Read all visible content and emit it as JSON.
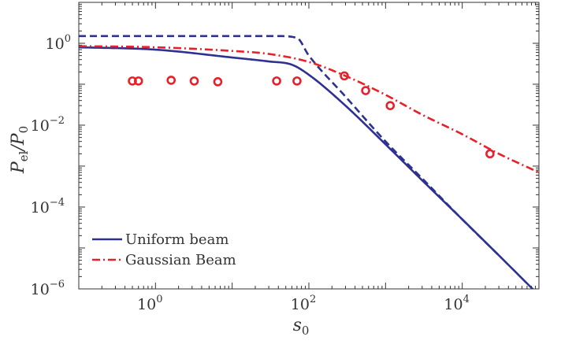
{
  "chart_data": {
    "type": "line",
    "xlabel": {
      "base": "s",
      "sub": "0"
    },
    "ylabel": {
      "num_base": "P",
      "num_sub": "el",
      "slash": "/",
      "den_base": "P",
      "den_sub": "0"
    },
    "xscale": "log",
    "yscale": "log",
    "xlim": [
      0.1,
      100000
    ],
    "ylim": [
      1e-06,
      10
    ],
    "x_tick_labels": [
      {
        "value": 1,
        "base": "10",
        "exp": "0"
      },
      {
        "value": 100,
        "base": "10",
        "exp": "2"
      },
      {
        "value": 10000,
        "base": "10",
        "exp": "4"
      }
    ],
    "y_tick_labels": [
      {
        "value": 1,
        "base": "10",
        "exp": "0"
      },
      {
        "value": 0.01,
        "base": "10",
        "exp": "−2"
      },
      {
        "value": 0.0001,
        "base": "10",
        "exp": "−4"
      },
      {
        "value": 1e-06,
        "base": "10",
        "exp": "−6"
      }
    ],
    "grid": false,
    "legend_position": "bottom-left",
    "series": [
      {
        "name": "Uniform beam",
        "style": "solid",
        "color": "#2e3192",
        "x": [
          0.1,
          1,
          10,
          30,
          60,
          100,
          300,
          1000,
          3000,
          10000,
          30000,
          100000
        ],
        "y": [
          0.8,
          0.7,
          0.45,
          0.36,
          0.3,
          0.17,
          0.03,
          0.0034,
          0.00045,
          5e-05,
          6.6e-06,
          7e-07
        ]
      },
      {
        "name": "",
        "style": "dashed",
        "color": "#2e3192",
        "x": [
          0.1,
          1,
          10,
          40,
          70,
          100,
          300,
          1000,
          3000,
          10000,
          30000
        ],
        "y": [
          1.5,
          1.5,
          1.5,
          1.5,
          1.35,
          0.5,
          0.05,
          0.004,
          0.0005,
          5e-05,
          6.6e-06
        ]
      },
      {
        "name": "Gaussian Beam",
        "style": "dash-dot",
        "color": "#e8202a",
        "x": [
          0.1,
          1,
          10,
          30,
          100,
          300,
          1000,
          3000,
          10000,
          30000,
          100000
        ],
        "y": [
          0.85,
          0.8,
          0.65,
          0.55,
          0.35,
          0.16,
          0.055,
          0.018,
          0.006,
          0.002,
          0.0007
        ]
      },
      {
        "name": "",
        "style": "markers",
        "color": "#e8202a",
        "x": [
          0.5,
          0.6,
          1.6,
          3.2,
          6.5,
          38,
          70,
          290,
          550,
          1150,
          23000
        ],
        "y": [
          0.12,
          0.12,
          0.125,
          0.12,
          0.115,
          0.12,
          0.12,
          0.16,
          0.07,
          0.03,
          0.002
        ]
      }
    ]
  }
}
